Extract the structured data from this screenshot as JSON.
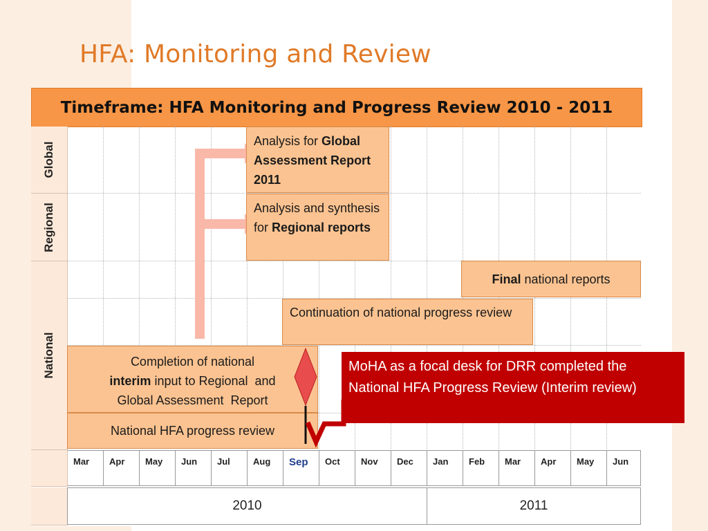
{
  "slide": {
    "title": "HFA: Monitoring and Review"
  },
  "chart": {
    "header": "Timeframe: HFA Monitoring and Progress Review 2010 - 2011",
    "rows": [
      "Global",
      "Regional",
      "National"
    ]
  },
  "tasks": {
    "global_a": "Analysis for ",
    "global_b": "Global Assessment Report 2011",
    "regional_a": "Analysis and synthesis for ",
    "regional_b": "Regional reports",
    "final_a": "Final",
    "final_b": " national reports",
    "continuation": "Continuation of national progress review",
    "completion_l1": "Completion of national",
    "completion_l2a": "interim",
    "completion_l2b": " input to Regional  and",
    "completion_l3": "Global Assessment  Report",
    "progress": "National HFA progress review"
  },
  "months": [
    "Mar",
    "Apr",
    "May",
    "Jun",
    "Jul",
    "Aug",
    "Sep",
    "Oct",
    "Nov",
    "Dec",
    "Jan",
    "Feb",
    "Mar",
    "Apr",
    "May",
    "Jun"
  ],
  "years": [
    "2010",
    "2011"
  ],
  "callout": {
    "text": "MoHA as a focal desk for DRR completed the National HFA Progress Review (Interim review)"
  },
  "colors": {
    "title": "#e07a28",
    "header": "#f79646",
    "task_fill": "#fbc391",
    "row_label": "#fde9d9",
    "arrow": "#f9b8a8",
    "milestone": "#e84c4c",
    "callout": "#c00000"
  }
}
